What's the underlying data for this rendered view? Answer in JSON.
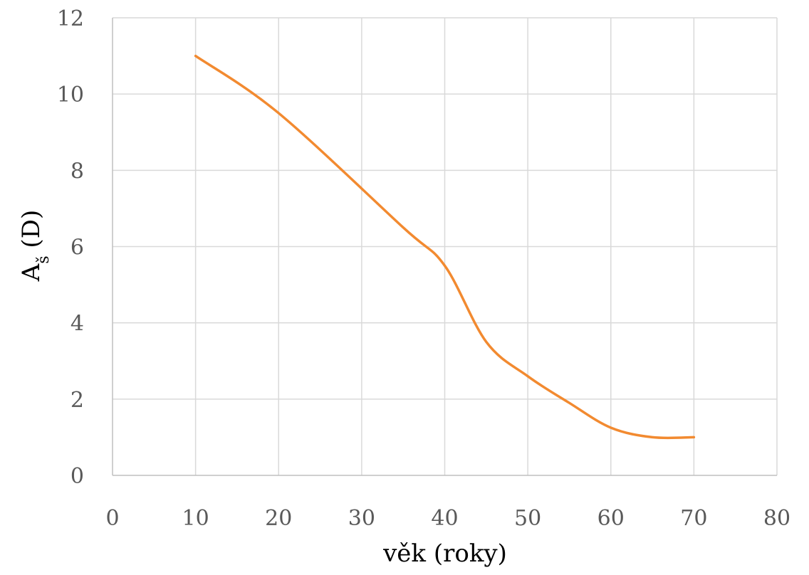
{
  "chart_data": {
    "type": "line",
    "xlabel": "věk (roky)",
    "ylabel_main": "A",
    "ylabel_sub": "š",
    "ylabel_rest": " (D)",
    "xlim": [
      0,
      80
    ],
    "ylim": [
      0,
      12
    ],
    "x_ticks": [
      "0",
      "10",
      "20",
      "30",
      "40",
      "50",
      "60",
      "70",
      "80"
    ],
    "y_ticks": [
      "0",
      "2",
      "4",
      "6",
      "8",
      "10",
      "12"
    ],
    "grid": true,
    "series": [
      {
        "color": "#f28a30",
        "smooth": true,
        "x": [
          10,
          20,
          35,
          40,
          45,
          50,
          55,
          60,
          65,
          70
        ],
        "y": [
          11,
          9.5,
          6.5,
          5.5,
          3.5,
          2.6,
          1.9,
          1.25,
          1.0,
          1.0
        ]
      }
    ]
  }
}
